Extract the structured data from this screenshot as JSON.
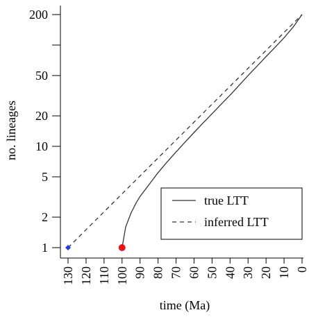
{
  "chart_data": {
    "type": "line",
    "xlabel": "time (Ma)",
    "ylabel": "no. lineages",
    "xlim": [
      130,
      0
    ],
    "ylim": [
      1,
      200
    ],
    "y_scale": "log",
    "x_ticks": [
      130,
      120,
      110,
      100,
      90,
      80,
      70,
      60,
      50,
      40,
      30,
      20,
      10,
      0
    ],
    "y_ticks": [
      1,
      2,
      5,
      10,
      20,
      50,
      200
    ],
    "legend": {
      "position": "bottom-right",
      "entries": [
        {
          "label": "true LTT",
          "style": "solid"
        },
        {
          "label": "inferred LTT",
          "style": "dashed"
        }
      ]
    },
    "series": [
      {
        "name": "true LTT",
        "style": "solid",
        "color": "#333333",
        "x": [
          100,
          98,
          95,
          92,
          90,
          85,
          80,
          75,
          70,
          65,
          60,
          55,
          50,
          45,
          40,
          35,
          30,
          25,
          20,
          15,
          10,
          5,
          0
        ],
        "y": [
          1,
          1.6,
          2.2,
          2.8,
          3.2,
          4.2,
          5.5,
          7,
          8.8,
          11,
          13.7,
          17,
          21,
          26,
          32,
          40,
          50,
          62,
          77,
          95,
          118,
          150,
          200
        ]
      },
      {
        "name": "inferred LTT",
        "style": "dashed",
        "color": "#333333",
        "x": [
          130,
          0
        ],
        "y": [
          1,
          200
        ]
      }
    ],
    "markers": [
      {
        "x": 100,
        "y": 1,
        "shape": "circle",
        "color": "#e8141a"
      },
      {
        "x": 130,
        "y": 1,
        "shape": "diamond",
        "color": "#1f3fd6"
      }
    ]
  }
}
